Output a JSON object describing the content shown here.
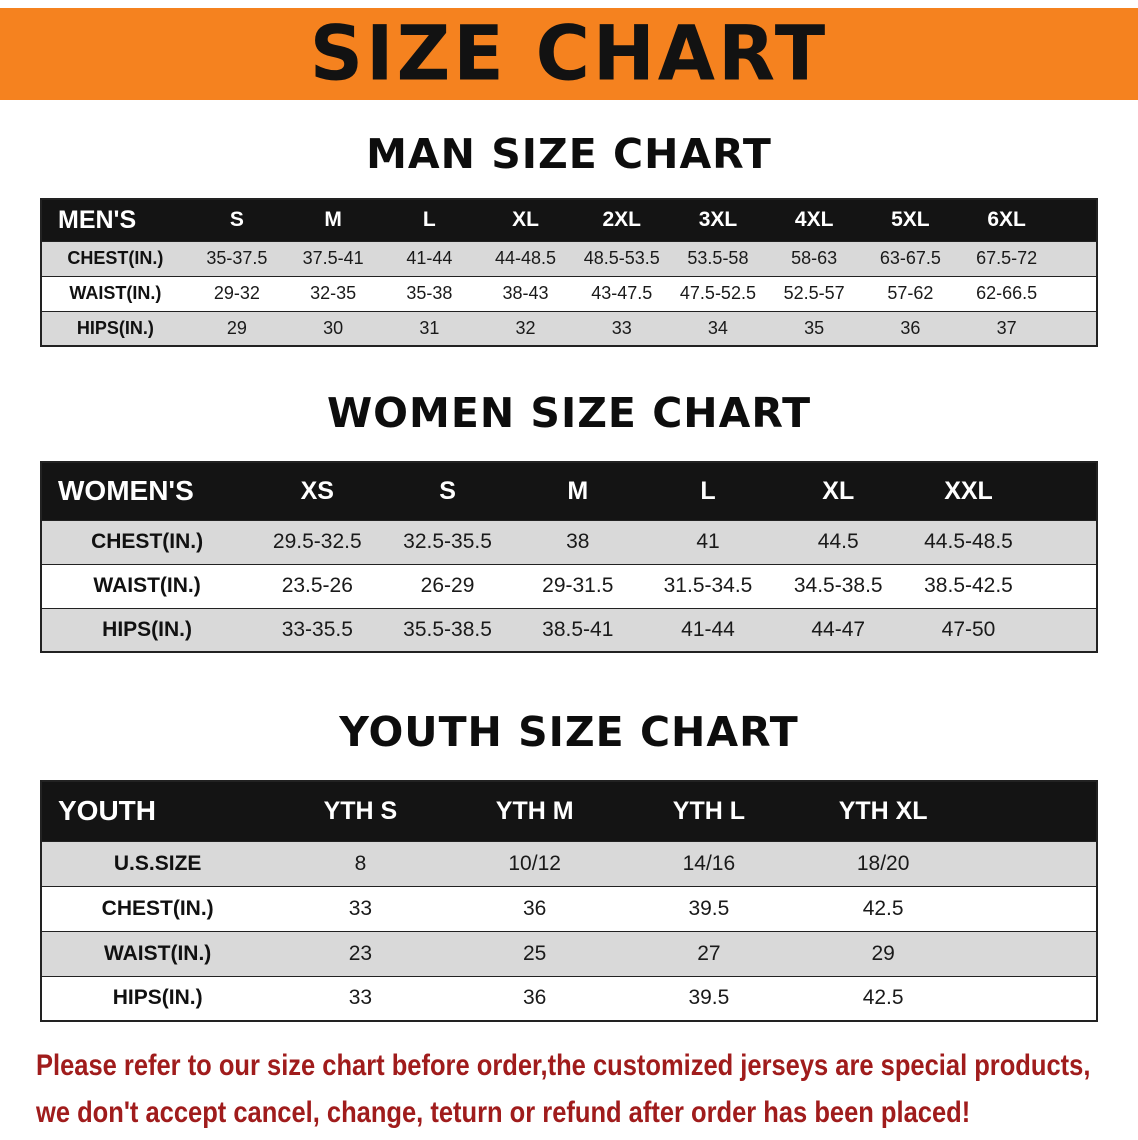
{
  "banner": {
    "title": "SIZE CHART"
  },
  "colors": {
    "banner_bg": "#f5821f",
    "table_header_bg": "#141414",
    "row_shade": "#d9d9d9",
    "note_text": "#a01c1c"
  },
  "sections": [
    {
      "heading": "MAN SIZE CHART",
      "table": {
        "header_label": "MEN'S",
        "columns": [
          "S",
          "M",
          "L",
          "XL",
          "2XL",
          "3XL",
          "4XL",
          "5XL",
          "6XL"
        ],
        "rows": [
          {
            "label": "CHEST(IN.)",
            "values": [
              "35-37.5",
              "37.5-41",
              "41-44",
              "44-48.5",
              "48.5-53.5",
              "53.5-58",
              "58-63",
              "63-67.5",
              "67.5-72"
            ]
          },
          {
            "label": "WAIST(IN.)",
            "values": [
              "29-32",
              "32-35",
              "35-38",
              "38-43",
              "43-47.5",
              "47.5-52.5",
              "52.5-57",
              "57-62",
              "62-66.5"
            ]
          },
          {
            "label": "HIPS(IN.)",
            "values": [
              "29",
              "30",
              "31",
              "32",
              "33",
              "34",
              "35",
              "36",
              "37"
            ]
          }
        ]
      }
    },
    {
      "heading": "WOMEN SIZE CHART",
      "table": {
        "header_label": "WOMEN'S",
        "columns": [
          "XS",
          "S",
          "M",
          "L",
          "XL",
          "XXL"
        ],
        "rows": [
          {
            "label": "CHEST(IN.)",
            "values": [
              "29.5-32.5",
              "32.5-35.5",
              "38",
              "41",
              "44.5",
              "44.5-48.5"
            ]
          },
          {
            "label": "WAIST(IN.)",
            "values": [
              "23.5-26",
              "26-29",
              "29-31.5",
              "31.5-34.5",
              "34.5-38.5",
              "38.5-42.5"
            ]
          },
          {
            "label": "HIPS(IN.)",
            "values": [
              "33-35.5",
              "35.5-38.5",
              "38.5-41",
              "41-44",
              "44-47",
              "47-50"
            ]
          }
        ]
      }
    },
    {
      "heading": "YOUTH SIZE CHART",
      "table": {
        "header_label": "YOUTH",
        "columns": [
          "YTH S",
          "YTH M",
          "YTH L",
          "YTH XL"
        ],
        "rows": [
          {
            "label": "U.S.SIZE",
            "values": [
              "8",
              "10/12",
              "14/16",
              "18/20"
            ]
          },
          {
            "label": "CHEST(IN.)",
            "values": [
              "33",
              "36",
              "39.5",
              "42.5"
            ]
          },
          {
            "label": "WAIST(IN.)",
            "values": [
              "23",
              "25",
              "27",
              "29"
            ]
          },
          {
            "label": "HIPS(IN.)",
            "values": [
              "33",
              "36",
              "39.5",
              "42.5"
            ]
          }
        ]
      }
    }
  ],
  "footer": {
    "line1": "Please refer to our size chart before order,the customized jerseys are special products,",
    "line2": "we don't accept cancel, change, teturn or refund after order has been placed!"
  }
}
